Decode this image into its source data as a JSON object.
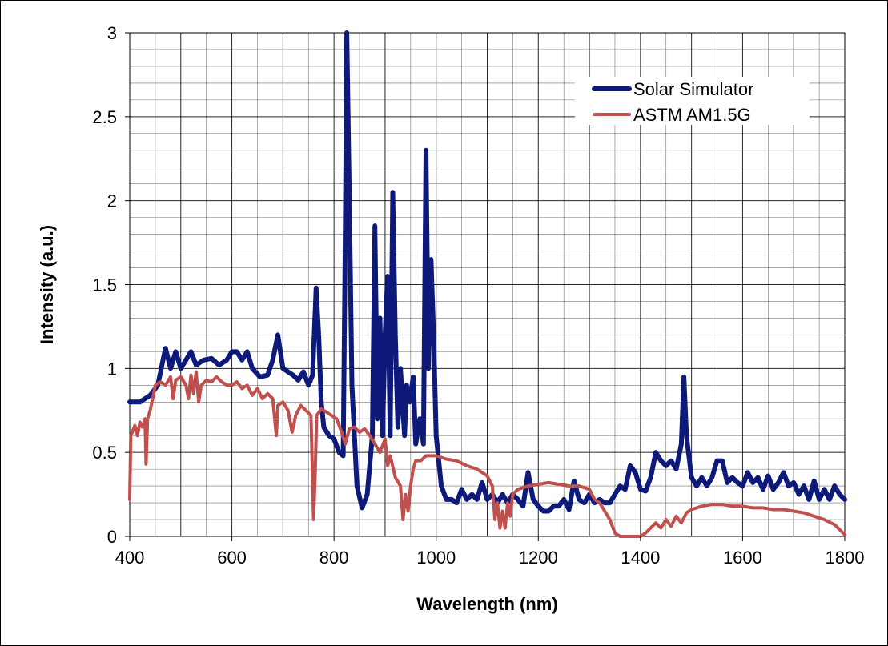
{
  "chart_data": {
    "type": "line",
    "title": "",
    "xlabel": "Wavelength (nm)",
    "ylabel": "Intensity (a.u.)",
    "xlim": [
      400,
      1800
    ],
    "ylim": [
      0,
      3
    ],
    "x_ticks": [
      "400",
      "600",
      "800",
      "1000",
      "1200",
      "1400",
      "1600",
      "1800"
    ],
    "y_ticks": [
      "0",
      "0.5",
      "1",
      "1.5",
      "2",
      "2.5",
      "3"
    ],
    "grid": "major and minor",
    "legend_position": "top-right",
    "series": [
      {
        "name": "Solar Simulator",
        "color": "#0d1a7a",
        "points": [
          [
            400,
            0.8
          ],
          [
            420,
            0.8
          ],
          [
            440,
            0.84
          ],
          [
            455,
            0.9
          ],
          [
            465,
            1.05
          ],
          [
            470,
            1.12
          ],
          [
            480,
            1.0
          ],
          [
            490,
            1.1
          ],
          [
            500,
            1.0
          ],
          [
            510,
            1.05
          ],
          [
            520,
            1.1
          ],
          [
            530,
            1.02
          ],
          [
            545,
            1.05
          ],
          [
            560,
            1.06
          ],
          [
            575,
            1.02
          ],
          [
            590,
            1.05
          ],
          [
            600,
            1.1
          ],
          [
            610,
            1.1
          ],
          [
            620,
            1.05
          ],
          [
            630,
            1.1
          ],
          [
            640,
            1.0
          ],
          [
            655,
            0.95
          ],
          [
            670,
            0.96
          ],
          [
            680,
            1.05
          ],
          [
            690,
            1.2
          ],
          [
            700,
            1.0
          ],
          [
            710,
            0.98
          ],
          [
            720,
            0.96
          ],
          [
            730,
            0.93
          ],
          [
            740,
            0.98
          ],
          [
            750,
            0.9
          ],
          [
            758,
            0.96
          ],
          [
            765,
            1.48
          ],
          [
            770,
            1.2
          ],
          [
            775,
            0.8
          ],
          [
            780,
            0.65
          ],
          [
            790,
            0.6
          ],
          [
            800,
            0.58
          ],
          [
            810,
            0.5
          ],
          [
            818,
            0.48
          ],
          [
            822,
            1.8
          ],
          [
            825,
            3.0
          ],
          [
            830,
            2.0
          ],
          [
            835,
            0.9
          ],
          [
            845,
            0.3
          ],
          [
            855,
            0.17
          ],
          [
            865,
            0.25
          ],
          [
            875,
            0.6
          ],
          [
            880,
            1.85
          ],
          [
            885,
            0.7
          ],
          [
            890,
            1.3
          ],
          [
            895,
            0.6
          ],
          [
            900,
            1.2
          ],
          [
            905,
            1.55
          ],
          [
            910,
            0.6
          ],
          [
            915,
            2.05
          ],
          [
            920,
            1.2
          ],
          [
            925,
            0.65
          ],
          [
            930,
            1.0
          ],
          [
            938,
            0.6
          ],
          [
            942,
            0.9
          ],
          [
            948,
            0.8
          ],
          [
            955,
            0.95
          ],
          [
            960,
            0.55
          ],
          [
            968,
            0.7
          ],
          [
            975,
            0.55
          ],
          [
            980,
            2.3
          ],
          [
            985,
            1.0
          ],
          [
            990,
            1.65
          ],
          [
            995,
            1.2
          ],
          [
            1000,
            0.6
          ],
          [
            1010,
            0.3
          ],
          [
            1020,
            0.22
          ],
          [
            1030,
            0.22
          ],
          [
            1040,
            0.2
          ],
          [
            1050,
            0.28
          ],
          [
            1060,
            0.22
          ],
          [
            1070,
            0.25
          ],
          [
            1080,
            0.22
          ],
          [
            1090,
            0.32
          ],
          [
            1100,
            0.22
          ],
          [
            1110,
            0.25
          ],
          [
            1120,
            0.2
          ],
          [
            1130,
            0.25
          ],
          [
            1140,
            0.2
          ],
          [
            1150,
            0.25
          ],
          [
            1160,
            0.22
          ],
          [
            1170,
            0.18
          ],
          [
            1180,
            0.38
          ],
          [
            1190,
            0.22
          ],
          [
            1200,
            0.18
          ],
          [
            1210,
            0.15
          ],
          [
            1220,
            0.15
          ],
          [
            1230,
            0.18
          ],
          [
            1240,
            0.18
          ],
          [
            1250,
            0.22
          ],
          [
            1260,
            0.16
          ],
          [
            1270,
            0.33
          ],
          [
            1280,
            0.22
          ],
          [
            1290,
            0.2
          ],
          [
            1300,
            0.25
          ],
          [
            1310,
            0.2
          ],
          [
            1320,
            0.22
          ],
          [
            1330,
            0.2
          ],
          [
            1340,
            0.2
          ],
          [
            1350,
            0.25
          ],
          [
            1360,
            0.3
          ],
          [
            1370,
            0.28
          ],
          [
            1380,
            0.42
          ],
          [
            1390,
            0.38
          ],
          [
            1400,
            0.28
          ],
          [
            1410,
            0.27
          ],
          [
            1420,
            0.35
          ],
          [
            1430,
            0.5
          ],
          [
            1440,
            0.45
          ],
          [
            1450,
            0.42
          ],
          [
            1460,
            0.45
          ],
          [
            1470,
            0.4
          ],
          [
            1480,
            0.55
          ],
          [
            1485,
            0.95
          ],
          [
            1490,
            0.6
          ],
          [
            1500,
            0.35
          ],
          [
            1510,
            0.3
          ],
          [
            1520,
            0.35
          ],
          [
            1530,
            0.3
          ],
          [
            1540,
            0.35
          ],
          [
            1550,
            0.45
          ],
          [
            1560,
            0.45
          ],
          [
            1570,
            0.32
          ],
          [
            1580,
            0.35
          ],
          [
            1590,
            0.32
          ],
          [
            1600,
            0.3
          ],
          [
            1610,
            0.38
          ],
          [
            1620,
            0.32
          ],
          [
            1630,
            0.35
          ],
          [
            1640,
            0.28
          ],
          [
            1650,
            0.36
          ],
          [
            1660,
            0.28
          ],
          [
            1670,
            0.32
          ],
          [
            1680,
            0.38
          ],
          [
            1690,
            0.3
          ],
          [
            1700,
            0.32
          ],
          [
            1710,
            0.25
          ],
          [
            1720,
            0.3
          ],
          [
            1730,
            0.22
          ],
          [
            1740,
            0.33
          ],
          [
            1750,
            0.22
          ],
          [
            1760,
            0.28
          ],
          [
            1770,
            0.22
          ],
          [
            1780,
            0.3
          ],
          [
            1790,
            0.25
          ],
          [
            1800,
            0.22
          ]
        ]
      },
      {
        "name": "ASTM AM1.5G",
        "color": "#c0504d",
        "points": [
          [
            400,
            0.22
          ],
          [
            402,
            0.6
          ],
          [
            405,
            0.62
          ],
          [
            410,
            0.66
          ],
          [
            415,
            0.6
          ],
          [
            420,
            0.68
          ],
          [
            425,
            0.65
          ],
          [
            430,
            0.7
          ],
          [
            432,
            0.43
          ],
          [
            435,
            0.7
          ],
          [
            440,
            0.75
          ],
          [
            445,
            0.82
          ],
          [
            450,
            0.9
          ],
          [
            460,
            0.92
          ],
          [
            470,
            0.9
          ],
          [
            480,
            0.95
          ],
          [
            485,
            0.82
          ],
          [
            490,
            0.93
          ],
          [
            500,
            0.95
          ],
          [
            510,
            0.9
          ],
          [
            515,
            0.82
          ],
          [
            520,
            0.96
          ],
          [
            525,
            0.85
          ],
          [
            530,
            0.98
          ],
          [
            535,
            0.8
          ],
          [
            540,
            0.9
          ],
          [
            550,
            0.93
          ],
          [
            560,
            0.92
          ],
          [
            570,
            0.95
          ],
          [
            580,
            0.92
          ],
          [
            590,
            0.9
          ],
          [
            600,
            0.9
          ],
          [
            610,
            0.92
          ],
          [
            620,
            0.88
          ],
          [
            630,
            0.9
          ],
          [
            640,
            0.84
          ],
          [
            650,
            0.88
          ],
          [
            660,
            0.82
          ],
          [
            670,
            0.85
          ],
          [
            680,
            0.82
          ],
          [
            687,
            0.6
          ],
          [
            690,
            0.78
          ],
          [
            700,
            0.8
          ],
          [
            710,
            0.75
          ],
          [
            718,
            0.62
          ],
          [
            725,
            0.72
          ],
          [
            735,
            0.78
          ],
          [
            745,
            0.75
          ],
          [
            755,
            0.72
          ],
          [
            760,
            0.1
          ],
          [
            763,
            0.35
          ],
          [
            766,
            0.72
          ],
          [
            775,
            0.76
          ],
          [
            785,
            0.74
          ],
          [
            795,
            0.72
          ],
          [
            805,
            0.7
          ],
          [
            815,
            0.62
          ],
          [
            822,
            0.55
          ],
          [
            830,
            0.64
          ],
          [
            840,
            0.65
          ],
          [
            850,
            0.62
          ],
          [
            860,
            0.64
          ],
          [
            870,
            0.6
          ],
          [
            880,
            0.55
          ],
          [
            890,
            0.5
          ],
          [
            900,
            0.58
          ],
          [
            905,
            0.42
          ],
          [
            910,
            0.48
          ],
          [
            920,
            0.35
          ],
          [
            930,
            0.3
          ],
          [
            935,
            0.1
          ],
          [
            940,
            0.25
          ],
          [
            945,
            0.15
          ],
          [
            950,
            0.3
          ],
          [
            955,
            0.4
          ],
          [
            960,
            0.45
          ],
          [
            970,
            0.45
          ],
          [
            980,
            0.48
          ],
          [
            990,
            0.48
          ],
          [
            1000,
            0.48
          ],
          [
            1020,
            0.46
          ],
          [
            1040,
            0.45
          ],
          [
            1060,
            0.42
          ],
          [
            1080,
            0.4
          ],
          [
            1090,
            0.38
          ],
          [
            1100,
            0.36
          ],
          [
            1110,
            0.3
          ],
          [
            1115,
            0.1
          ],
          [
            1120,
            0.2
          ],
          [
            1125,
            0.05
          ],
          [
            1130,
            0.15
          ],
          [
            1135,
            0.05
          ],
          [
            1140,
            0.2
          ],
          [
            1145,
            0.12
          ],
          [
            1150,
            0.25
          ],
          [
            1160,
            0.28
          ],
          [
            1180,
            0.3
          ],
          [
            1200,
            0.31
          ],
          [
            1220,
            0.32
          ],
          [
            1240,
            0.31
          ],
          [
            1260,
            0.3
          ],
          [
            1280,
            0.3
          ],
          [
            1300,
            0.28
          ],
          [
            1310,
            0.22
          ],
          [
            1320,
            0.2
          ],
          [
            1330,
            0.15
          ],
          [
            1340,
            0.1
          ],
          [
            1350,
            0.02
          ],
          [
            1360,
            0.0
          ],
          [
            1400,
            0.0
          ],
          [
            1410,
            0.02
          ],
          [
            1420,
            0.05
          ],
          [
            1430,
            0.08
          ],
          [
            1440,
            0.05
          ],
          [
            1450,
            0.1
          ],
          [
            1460,
            0.06
          ],
          [
            1470,
            0.12
          ],
          [
            1480,
            0.08
          ],
          [
            1490,
            0.14
          ],
          [
            1500,
            0.16
          ],
          [
            1520,
            0.18
          ],
          [
            1540,
            0.19
          ],
          [
            1560,
            0.19
          ],
          [
            1580,
            0.18
          ],
          [
            1600,
            0.18
          ],
          [
            1620,
            0.17
          ],
          [
            1640,
            0.17
          ],
          [
            1660,
            0.16
          ],
          [
            1680,
            0.16
          ],
          [
            1700,
            0.15
          ],
          [
            1720,
            0.14
          ],
          [
            1740,
            0.12
          ],
          [
            1760,
            0.1
          ],
          [
            1780,
            0.07
          ],
          [
            1790,
            0.04
          ],
          [
            1800,
            0.01
          ]
        ]
      }
    ]
  }
}
